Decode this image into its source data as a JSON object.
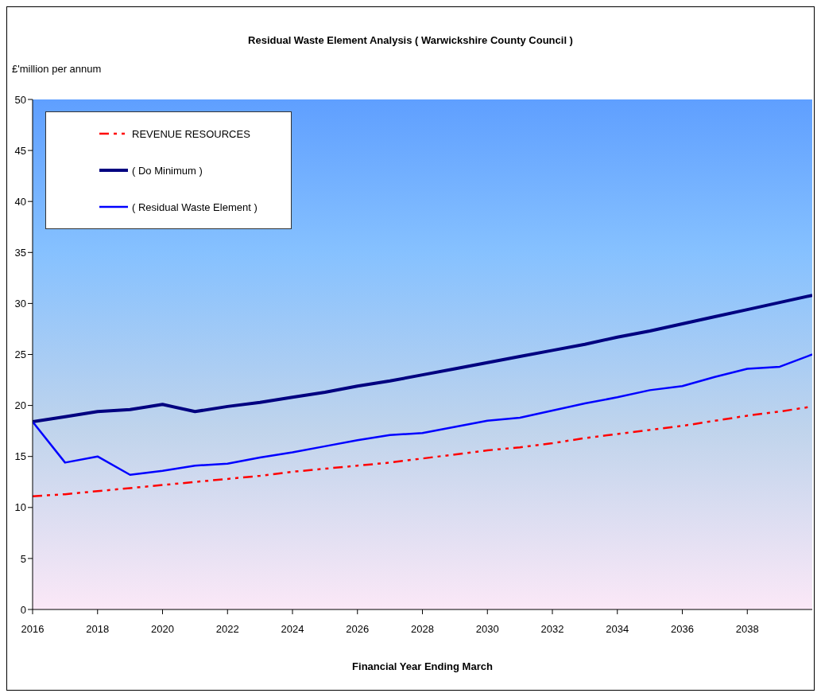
{
  "chart_data": {
    "type": "line",
    "title": "Residual Waste Element Analysis ( Warwickshire County Council )",
    "ylabel": "£'million per annum",
    "xlabel": "Financial Year Ending March",
    "x": [
      2016,
      2017,
      2018,
      2019,
      2020,
      2021,
      2022,
      2023,
      2024,
      2025,
      2026,
      2027,
      2028,
      2029,
      2030,
      2031,
      2032,
      2033,
      2034,
      2035,
      2036,
      2037,
      2038,
      2039,
      2040
    ],
    "series": [
      {
        "name": "REVENUE RESOURCES",
        "color": "#ff0000",
        "line_style": "dashed",
        "values": [
          11.1,
          11.3,
          11.6,
          11.9,
          12.2,
          12.5,
          12.8,
          13.1,
          13.5,
          13.8,
          14.1,
          14.4,
          14.8,
          15.2,
          15.6,
          15.9,
          16.3,
          16.8,
          17.2,
          17.6,
          18.0,
          18.5,
          19.0,
          19.4,
          19.9
        ]
      },
      {
        "name": "( Do Minimum )",
        "color": "#000080",
        "line_style": "solid",
        "values": [
          18.4,
          18.9,
          19.4,
          19.6,
          20.1,
          19.4,
          19.9,
          20.3,
          20.8,
          21.3,
          21.9,
          22.4,
          23.0,
          23.6,
          24.2,
          24.8,
          25.4,
          26.0,
          26.7,
          27.3,
          28.0,
          28.7,
          29.4,
          30.1,
          30.8
        ]
      },
      {
        "name": "( Residual Waste Element )",
        "color": "#0000ff",
        "line_style": "solid",
        "values": [
          18.4,
          14.4,
          15.0,
          13.2,
          13.6,
          14.1,
          14.3,
          14.9,
          15.4,
          16.0,
          16.6,
          17.1,
          17.3,
          17.9,
          18.5,
          18.8,
          19.5,
          20.2,
          20.8,
          21.5,
          21.9,
          22.8,
          23.6,
          23.8,
          25.0
        ]
      }
    ],
    "xlim": [
      2016,
      2040
    ],
    "xticks": [
      2016,
      2018,
      2020,
      2022,
      2024,
      2026,
      2028,
      2030,
      2032,
      2034,
      2036,
      2038
    ],
    "ylim": [
      0,
      50
    ],
    "yticks": [
      0,
      5,
      10,
      15,
      20,
      25,
      30,
      35,
      40,
      45,
      50
    ],
    "grid": false,
    "legend": "top left",
    "marker": "none"
  }
}
